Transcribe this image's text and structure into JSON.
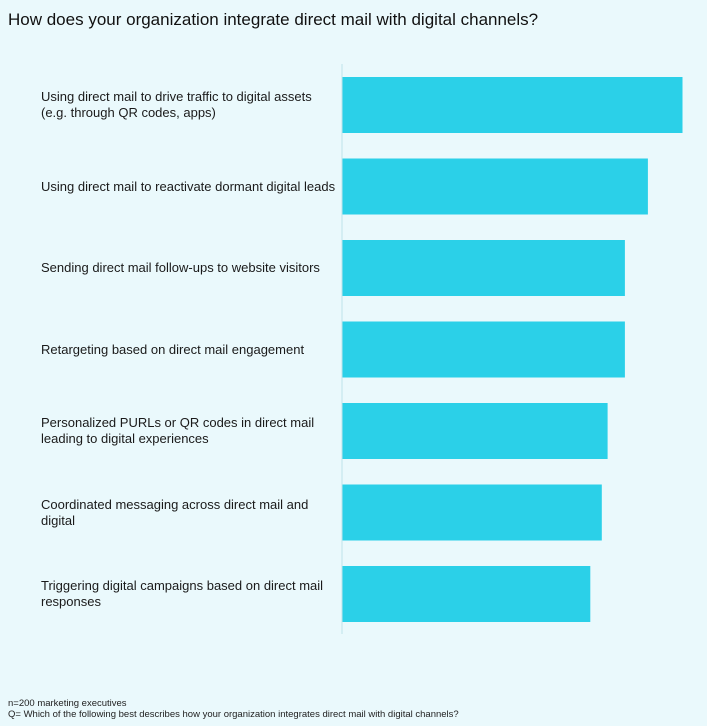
{
  "chart_data": {
    "type": "bar",
    "orientation": "horizontal",
    "title": "How does your organization integrate direct mail with digital channels?",
    "categories": [
      "Using direct mail to drive traffic to digital assets (e.g. through QR codes, apps)",
      "Using direct mail to reactivate dormant digital leads",
      "Sending direct mail follow-ups to website visitors",
      "Retargeting based on direct mail engagement",
      "Personalized PURLs or QR codes in direct mail leading to digital experiences",
      "Coordinated messaging across direct mail and digital",
      "Triggering digital campaigns based on direct mail responses"
    ],
    "values": [
      59,
      53,
      49,
      49,
      46,
      45,
      43
    ],
    "xlim": [
      0,
      60
    ],
    "grid": false,
    "legend": "none",
    "bar_color": "#2bd0e8",
    "axis_color": "#bfe3ea",
    "background_color": "#eaf9fc"
  },
  "footnotes": {
    "sample": "n=200 marketing executives",
    "question": "Q= Which of the following best describes how your organization integrates direct mail with digital channels?"
  }
}
